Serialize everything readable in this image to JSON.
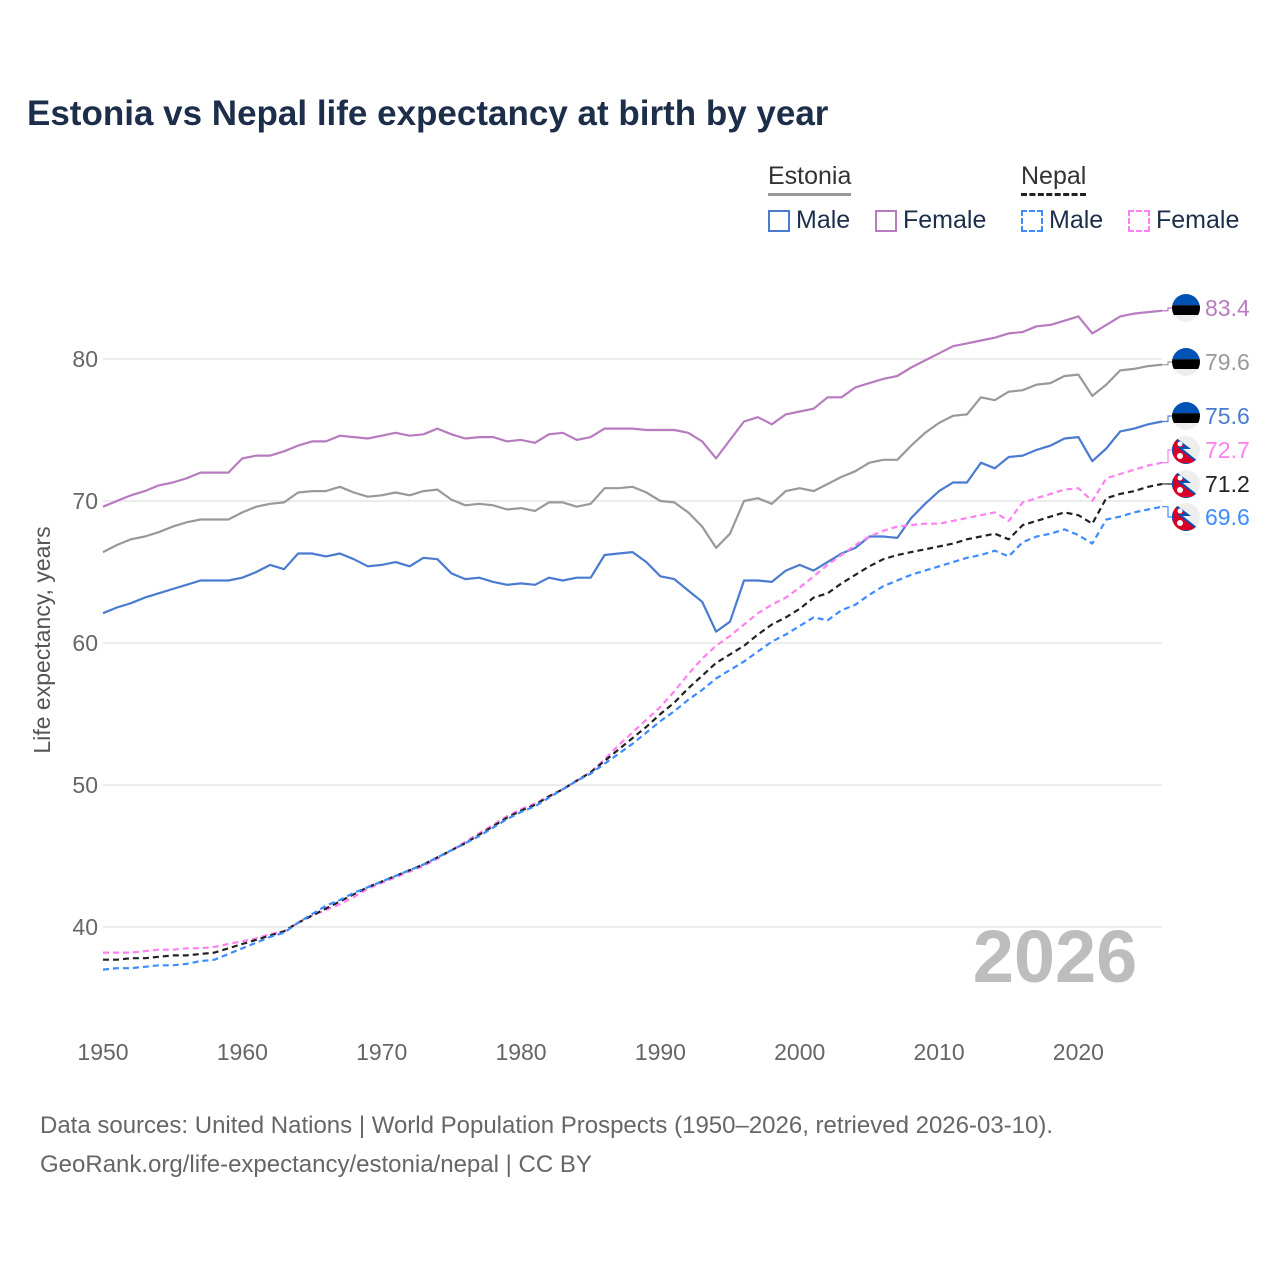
{
  "chart_data": {
    "type": "line",
    "title": "Estonia vs Nepal life expectancy at birth by year",
    "xlabel": "",
    "ylabel": "Life expectancy, years",
    "xlim": [
      1950,
      2026
    ],
    "ylim": [
      33.5,
      85
    ],
    "x_ticks": [
      "1950",
      "1960",
      "1970",
      "1980",
      "1990",
      "2000",
      "2010",
      "2020"
    ],
    "y_ticks": [
      "40",
      "50",
      "60",
      "70",
      "80"
    ],
    "grid": true,
    "year_watermark": "2026",
    "legend": {
      "groups": [
        {
          "country": "Estonia",
          "items": [
            "Male",
            "Female"
          ]
        },
        {
          "country": "Nepal",
          "items": [
            "Male",
            "Female"
          ]
        }
      ],
      "placement": "top-right"
    },
    "series": [
      {
        "name": "Estonia Female",
        "country": "Estonia",
        "color": "#b77bbf",
        "dashed": false,
        "end_label": "83.4",
        "flag": "estonia",
        "values": [
          69.6,
          70.0,
          70.4,
          70.7,
          71.1,
          71.3,
          71.6,
          72.0,
          72.0,
          72.0,
          73.0,
          73.2,
          73.2,
          73.5,
          73.9,
          74.2,
          74.2,
          74.6,
          74.5,
          74.4,
          74.6,
          74.8,
          74.6,
          74.7,
          75.1,
          74.7,
          74.4,
          74.5,
          74.5,
          74.2,
          74.3,
          74.1,
          74.7,
          74.8,
          74.3,
          74.5,
          75.1,
          75.1,
          75.1,
          75.0,
          75.0,
          75.0,
          74.8,
          74.2,
          73.0,
          74.3,
          75.6,
          75.9,
          75.4,
          76.1,
          76.3,
          76.5,
          77.3,
          77.3,
          78.0,
          78.3,
          78.6,
          78.8,
          79.4,
          79.9,
          80.4,
          80.9,
          81.1,
          81.3,
          81.5,
          81.8,
          81.9,
          82.3,
          82.4,
          82.7,
          83.0,
          81.8,
          82.4,
          83.0,
          83.2,
          83.3,
          83.4
        ]
      },
      {
        "name": "Estonia Total",
        "country": "Estonia",
        "color": "#999999",
        "dashed": false,
        "end_label": "79.6",
        "flag": "estonia",
        "values": [
          66.4,
          66.9,
          67.3,
          67.5,
          67.8,
          68.2,
          68.5,
          68.7,
          68.7,
          68.7,
          69.2,
          69.6,
          69.8,
          69.9,
          70.6,
          70.7,
          70.7,
          71.0,
          70.6,
          70.3,
          70.4,
          70.6,
          70.4,
          70.7,
          70.8,
          70.1,
          69.7,
          69.8,
          69.7,
          69.4,
          69.5,
          69.3,
          69.9,
          69.9,
          69.6,
          69.8,
          70.9,
          70.9,
          71.0,
          70.6,
          70.0,
          69.9,
          69.2,
          68.2,
          66.7,
          67.7,
          70.0,
          70.2,
          69.8,
          70.7,
          70.9,
          70.7,
          71.2,
          71.7,
          72.1,
          72.7,
          72.9,
          72.9,
          73.9,
          74.8,
          75.5,
          76.0,
          76.1,
          77.3,
          77.1,
          77.7,
          77.8,
          78.2,
          78.3,
          78.8,
          78.9,
          77.4,
          78.2,
          79.2,
          79.3,
          79.5,
          79.6
        ]
      },
      {
        "name": "Estonia Male",
        "country": "Estonia",
        "color": "#4a7bd0",
        "dashed": false,
        "end_label": "75.6",
        "flag": "estonia",
        "values": [
          62.1,
          62.5,
          62.8,
          63.2,
          63.5,
          63.8,
          64.1,
          64.4,
          64.4,
          64.4,
          64.6,
          65.0,
          65.5,
          65.2,
          66.3,
          66.3,
          66.1,
          66.3,
          65.9,
          65.4,
          65.5,
          65.7,
          65.4,
          66.0,
          65.9,
          64.9,
          64.5,
          64.6,
          64.3,
          64.1,
          64.2,
          64.1,
          64.6,
          64.4,
          64.6,
          64.6,
          66.2,
          66.3,
          66.4,
          65.7,
          64.7,
          64.5,
          63.7,
          62.9,
          60.8,
          61.5,
          64.4,
          64.4,
          64.3,
          65.1,
          65.5,
          65.1,
          65.7,
          66.3,
          66.7,
          67.5,
          67.5,
          67.4,
          68.8,
          69.8,
          70.7,
          71.3,
          71.3,
          72.7,
          72.3,
          73.1,
          73.2,
          73.6,
          73.9,
          74.4,
          74.5,
          72.8,
          73.7,
          74.9,
          75.1,
          75.4,
          75.6
        ]
      },
      {
        "name": "Nepal Female",
        "country": "Nepal",
        "color": "#ff80f0",
        "dashed": true,
        "end_label": "72.7",
        "flag": "nepal",
        "values": [
          38.2,
          38.2,
          38.2,
          38.3,
          38.4,
          38.4,
          38.5,
          38.5,
          38.6,
          38.8,
          39.0,
          39.2,
          39.5,
          39.7,
          40.3,
          40.8,
          41.2,
          41.6,
          42.1,
          42.7,
          43.1,
          43.5,
          43.9,
          44.3,
          44.8,
          45.4,
          46.0,
          46.6,
          47.2,
          47.8,
          48.3,
          48.7,
          49.2,
          49.7,
          50.3,
          50.9,
          51.8,
          52.8,
          53.7,
          54.6,
          55.5,
          56.6,
          57.8,
          58.9,
          59.8,
          60.5,
          61.3,
          62.1,
          62.7,
          63.2,
          63.9,
          64.7,
          65.5,
          66.2,
          66.9,
          67.5,
          67.9,
          68.2,
          68.3,
          68.4,
          68.4,
          68.6,
          68.8,
          69.0,
          69.2,
          68.6,
          69.9,
          70.2,
          70.5,
          70.8,
          70.9,
          70.0,
          71.6,
          71.9,
          72.2,
          72.5,
          72.7
        ]
      },
      {
        "name": "Nepal Total",
        "country": "Nepal",
        "color": "#222222",
        "dashed": true,
        "end_label": "71.2",
        "flag": "nepal",
        "values": [
          37.7,
          37.7,
          37.8,
          37.8,
          37.9,
          38.0,
          38.0,
          38.1,
          38.2,
          38.5,
          38.8,
          39.1,
          39.4,
          39.7,
          40.3,
          40.8,
          41.3,
          41.8,
          42.3,
          42.8,
          43.2,
          43.6,
          44.0,
          44.4,
          44.9,
          45.4,
          45.9,
          46.5,
          47.1,
          47.7,
          48.2,
          48.6,
          49.2,
          49.7,
          50.3,
          50.9,
          51.7,
          52.5,
          53.3,
          54.1,
          55.0,
          55.8,
          56.8,
          57.7,
          58.6,
          59.2,
          59.8,
          60.6,
          61.3,
          61.8,
          62.4,
          63.2,
          63.5,
          64.2,
          64.8,
          65.4,
          65.9,
          66.2,
          66.4,
          66.6,
          66.8,
          67.0,
          67.3,
          67.5,
          67.7,
          67.3,
          68.3,
          68.6,
          68.9,
          69.2,
          69.0,
          68.4,
          70.2,
          70.5,
          70.7,
          71.0,
          71.2
        ]
      },
      {
        "name": "Nepal Male",
        "country": "Nepal",
        "color": "#3d8bff",
        "dashed": true,
        "end_label": "69.6",
        "flag": "nepal",
        "values": [
          37.0,
          37.1,
          37.1,
          37.2,
          37.3,
          37.3,
          37.4,
          37.6,
          37.7,
          38.1,
          38.5,
          38.9,
          39.3,
          39.6,
          40.3,
          40.9,
          41.5,
          41.9,
          42.4,
          42.8,
          43.2,
          43.6,
          44.0,
          44.4,
          44.9,
          45.4,
          45.9,
          46.4,
          47.0,
          47.6,
          48.1,
          48.5,
          49.1,
          49.7,
          50.3,
          50.8,
          51.5,
          52.2,
          52.9,
          53.7,
          54.5,
          55.2,
          56.0,
          56.7,
          57.5,
          58.1,
          58.7,
          59.4,
          60.1,
          60.6,
          61.2,
          61.8,
          61.6,
          62.3,
          62.7,
          63.4,
          64.0,
          64.4,
          64.8,
          65.1,
          65.4,
          65.7,
          66.0,
          66.2,
          66.5,
          66.1,
          67.1,
          67.5,
          67.7,
          68.0,
          67.6,
          67.0,
          68.7,
          68.9,
          69.2,
          69.4,
          69.6
        ]
      }
    ]
  },
  "source": {
    "line1": "Data sources: United Nations | World Population Prospects (1950–2026, retrieved 2026-03-10).",
    "line2": "GeoRank.org/life-expectancy/estonia/nepal | CC BY"
  }
}
